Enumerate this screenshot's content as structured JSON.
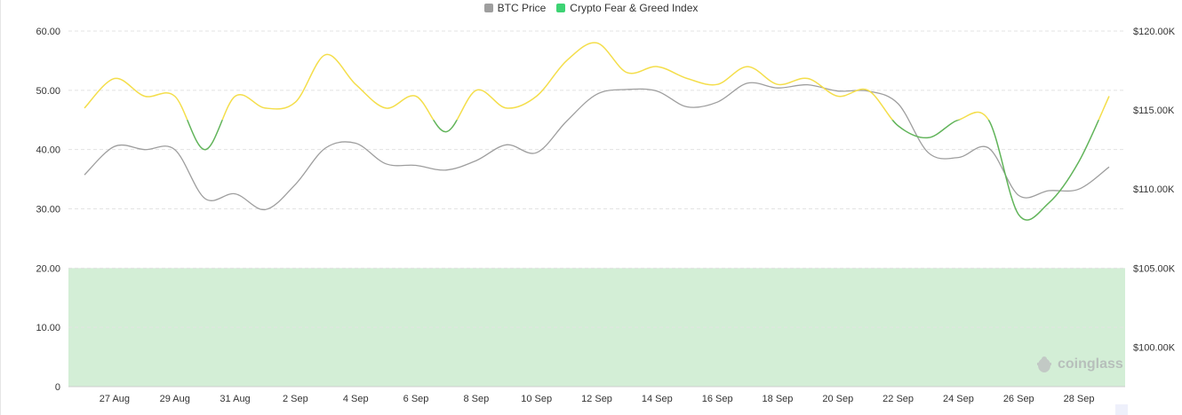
{
  "chart_data": {
    "type": "line",
    "legend": [
      {
        "name": "BTC Price",
        "color": "#9e9e9e"
      },
      {
        "name": "Crypto Fear & Greed Index",
        "color": "#3dd373"
      }
    ],
    "legend_position": "top-center",
    "x_tick_labels": [
      "27 Aug",
      "29 Aug",
      "31 Aug",
      "2 Sep",
      "4 Sep",
      "6 Sep",
      "8 Sep",
      "10 Sep",
      "12 Sep",
      "14 Sep",
      "16 Sep",
      "18 Sep",
      "20 Sep",
      "22 Sep",
      "24 Sep",
      "26 Sep",
      "28 Sep"
    ],
    "x": [
      "26 Aug",
      "27 Aug",
      "28 Aug",
      "29 Aug",
      "30 Aug",
      "31 Aug",
      "1 Sep",
      "2 Sep",
      "3 Sep",
      "4 Sep",
      "5 Sep",
      "6 Sep",
      "7 Sep",
      "8 Sep",
      "9 Sep",
      "10 Sep",
      "11 Sep",
      "12 Sep",
      "13 Sep",
      "14 Sep",
      "15 Sep",
      "16 Sep",
      "17 Sep",
      "18 Sep",
      "19 Sep",
      "20 Sep",
      "21 Sep",
      "22 Sep",
      "23 Sep",
      "24 Sep",
      "25 Sep",
      "26 Sep",
      "27 Sep",
      "28 Sep",
      "29 Sep"
    ],
    "y_left": {
      "ticks": [
        "0",
        "10.00",
        "20.00",
        "30.00",
        "40.00",
        "50.00",
        "60.00"
      ],
      "range": [
        0,
        60
      ]
    },
    "y_right": {
      "ticks": [
        "$100.00K",
        "$105.00K",
        "$110.00K",
        "$115.00K",
        "$120.00K"
      ],
      "range": [
        97.5,
        120
      ]
    },
    "grid": "horizontal-dashed",
    "bands": [
      {
        "from": 0,
        "to": 20,
        "axis": "left",
        "color": "#d3eed6"
      }
    ],
    "series": [
      {
        "name": "Crypto Fear & Greed Index",
        "axis": "left",
        "values": [
          47,
          52,
          49,
          49,
          40,
          49,
          47,
          48,
          56,
          51,
          47,
          49,
          43,
          50,
          47,
          49,
          55,
          58,
          53,
          54,
          52,
          51,
          54,
          51,
          52,
          49,
          50,
          44,
          42,
          45,
          45,
          29,
          31,
          38,
          49
        ],
        "segment_colors": {
          "above_45": "#f4de4b",
          "below_45": "#61b45a"
        }
      },
      {
        "name": "BTC Price",
        "axis": "right",
        "color": "#9e9e9e",
        "values": [
          110.9,
          112.7,
          112.5,
          112.5,
          109.4,
          109.7,
          108.7,
          110.3,
          112.6,
          112.9,
          111.6,
          111.5,
          111.2,
          111.8,
          112.8,
          112.3,
          114.3,
          116.0,
          116.3,
          116.2,
          115.2,
          115.5,
          116.7,
          116.4,
          116.6,
          116.2,
          116.2,
          115.4,
          112.3,
          112.0,
          112.6,
          109.6,
          109.9,
          110.0,
          111.4
        ]
      }
    ],
    "watermark": "coinglass"
  }
}
